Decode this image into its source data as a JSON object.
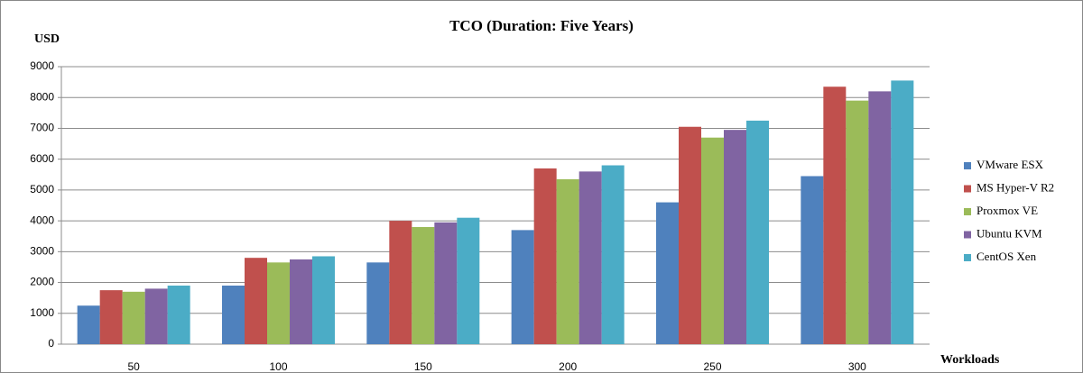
{
  "chart_data": {
    "type": "bar",
    "title": "TCO (Duration: Five Years)",
    "y_label": "USD",
    "x_label": "Workloads",
    "categories": [
      "50",
      "100",
      "150",
      "200",
      "250",
      "300"
    ],
    "series": [
      {
        "name": "VMware ESX",
        "color": "#4f81bd",
        "values": [
          1250,
          1900,
          2650,
          3700,
          4600,
          5450
        ]
      },
      {
        "name": "MS Hyper-V R2",
        "color": "#c0504d",
        "values": [
          1750,
          2800,
          4000,
          5700,
          7050,
          8350
        ]
      },
      {
        "name": "Proxmox VE",
        "color": "#9bbb59",
        "values": [
          1700,
          2650,
          3800,
          5350,
          6700,
          7900
        ]
      },
      {
        "name": "Ubuntu KVM",
        "color": "#8064a2",
        "values": [
          1800,
          2750,
          3950,
          5600,
          6950,
          8200
        ]
      },
      {
        "name": "CentOS Xen",
        "color": "#4bacc6",
        "values": [
          1900,
          2850,
          4100,
          5800,
          7250,
          8550
        ]
      }
    ],
    "ylim": [
      0,
      9000
    ],
    "yticks": [
      0,
      1000,
      2000,
      3000,
      4000,
      5000,
      6000,
      7000,
      8000,
      9000
    ],
    "grid": true,
    "legend": "right"
  }
}
